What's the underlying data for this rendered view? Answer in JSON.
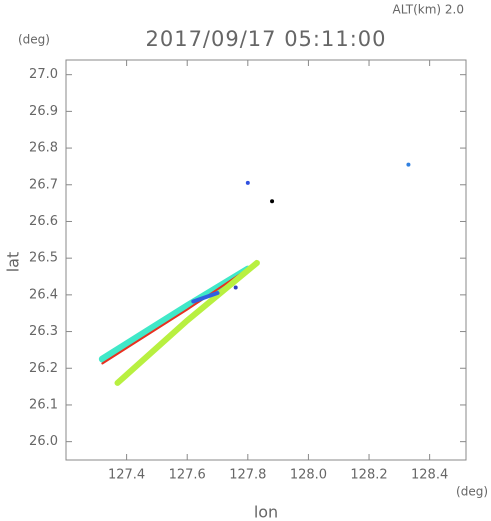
{
  "chart_data": {
    "type": "line",
    "title": "2017/09/17 05:11:00",
    "subtitle": "ALT(km) 2.0",
    "y_unit": "(deg)",
    "x_unit": "(deg)",
    "x_label": "lon",
    "y_label": "lat",
    "xlim": [
      127.2,
      128.52
    ],
    "ylim": [
      25.95,
      27.04
    ],
    "xticks": [
      127.4,
      127.6,
      127.8,
      {
        "value": 128.0,
        "label": "128.0"
      },
      128.2,
      128.4
    ],
    "yticks": [
      {
        "value": 26.0,
        "label": "26.0"
      },
      26.1,
      26.2,
      26.3,
      26.4,
      26.5,
      26.6,
      26.7,
      26.8,
      26.9,
      {
        "value": 27.0,
        "label": "27.0"
      }
    ],
    "series": [
      {
        "color": "#40e8c8",
        "x": [
          127.32,
          127.6,
          127.8
        ],
        "values": [
          26.225,
          26.37,
          26.47
        ]
      },
      {
        "color": "#e83020",
        "x": [
          127.32,
          127.6,
          127.83
        ],
        "values": [
          26.213,
          26.36,
          26.487
        ]
      },
      {
        "color": "#b8f040",
        "x": [
          127.37,
          127.6,
          127.83
        ],
        "values": [
          26.16,
          26.33,
          26.487
        ]
      },
      {
        "color": "#3060e0",
        "x": [
          127.62,
          127.7
        ],
        "values": [
          26.382,
          26.405
        ]
      },
      {
        "color": "#3050e0",
        "x": [
          127.8
        ],
        "values": [
          26.705
        ]
      },
      {
        "color": "#3080e0",
        "x": [
          128.33
        ],
        "values": [
          26.755
        ]
      },
      {
        "color": "#3040c0",
        "x": [
          127.76
        ],
        "values": [
          26.42
        ]
      },
      {
        "color": "#000000",
        "x": [
          127.88
        ],
        "values": [
          26.655
        ]
      }
    ]
  }
}
